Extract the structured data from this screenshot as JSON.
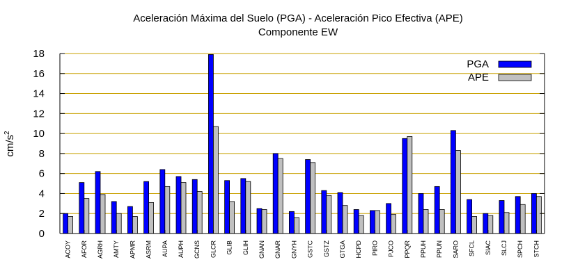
{
  "chart_data": {
    "type": "bar",
    "title": "Aceleración Máxima del Suelo (PGA) -  Aceleración Pico Efectiva (APE)",
    "subtitle": "Componente EW",
    "xlabel": "",
    "ylabel": "cm/s",
    "ylabel_superscript": "2",
    "ylim": [
      0,
      18
    ],
    "yticks": [
      0,
      2,
      4,
      6,
      8,
      10,
      12,
      14,
      16,
      18
    ],
    "grid": "horizontal",
    "legend_position": "top-right",
    "categories": [
      "ACOY",
      "AFOR",
      "AGRH",
      "AMTY",
      "APMR",
      "ASRM",
      "AUPA",
      "AUPH",
      "GCNS",
      "GLCR",
      "GLIB",
      "GLIH",
      "GNAN",
      "GNAR",
      "GNYH",
      "GSTC",
      "GSTZ",
      "GTGA",
      "HCPD",
      "PIRO",
      "PJCO",
      "PPQR",
      "PPUH",
      "PPUN",
      "SARO",
      "SFCL",
      "SIAC",
      "SLCJ",
      "SPCH",
      "STCH"
    ],
    "series": [
      {
        "name": "PGA",
        "color": "#0000ff",
        "values": [
          2.0,
          5.1,
          6.2,
          3.2,
          2.7,
          5.2,
          6.4,
          5.7,
          5.4,
          17.9,
          5.3,
          5.5,
          2.5,
          8.0,
          2.2,
          7.4,
          4.3,
          4.1,
          2.4,
          2.3,
          3.0,
          9.5,
          4.0,
          4.7,
          10.3,
          3.4,
          2.0,
          3.3,
          3.7,
          4.0
        ]
      },
      {
        "name": "APE",
        "color": "#c0c0c0",
        "values": [
          1.7,
          3.5,
          3.9,
          2.0,
          1.7,
          3.1,
          4.7,
          5.1,
          4.2,
          10.7,
          3.2,
          5.2,
          2.4,
          7.5,
          1.6,
          7.1,
          3.8,
          2.8,
          1.8,
          2.3,
          1.9,
          9.7,
          2.4,
          2.4,
          8.3,
          1.7,
          1.8,
          2.1,
          2.9,
          3.7
        ]
      }
    ],
    "colors": {
      "grid": "#c8a000",
      "axis": "#000000",
      "bar_outline": "#000000"
    }
  }
}
